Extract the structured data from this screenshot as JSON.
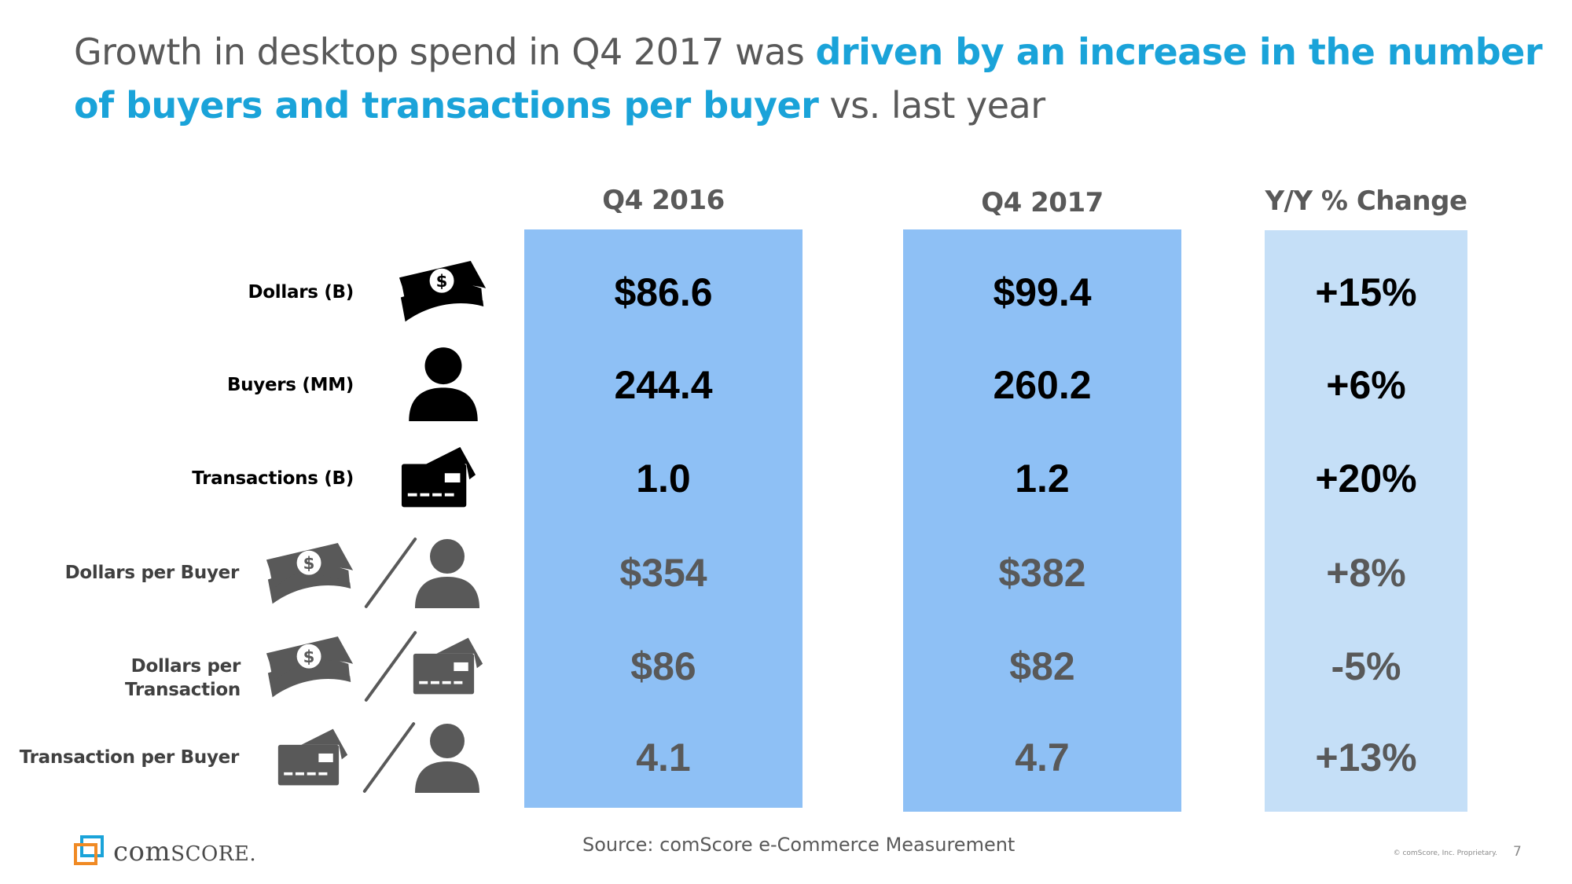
{
  "title": {
    "part1": "Growth in desktop spend in Q4 2017 was ",
    "highlight": "driven by an increase in the number of buyers and transactions per buyer",
    "part2": " vs. last year"
  },
  "colors": {
    "col_q4_2016": "#8ec0f5",
    "col_q4_2017": "#8ec0f5",
    "col_yoy": "#c5dff7",
    "title_highlight": "#1aa3d9",
    "icon_dark": "#000000",
    "icon_gray": "#595959"
  },
  "chart_data": {
    "type": "table",
    "columns": [
      "Q4 2016",
      "Q4 2017",
      "Y/Y % Change"
    ],
    "rows": [
      {
        "label": "Dollars (B)",
        "icons": [
          "money-icon"
        ],
        "values": [
          "$86.6",
          "$99.4",
          "+15%"
        ],
        "style": "primary"
      },
      {
        "label": "Buyers (MM)",
        "icons": [
          "person-icon"
        ],
        "values": [
          "244.4",
          "260.2",
          "+6%"
        ],
        "style": "primary"
      },
      {
        "label": "Transactions (B)",
        "icons": [
          "credit-card-icon"
        ],
        "values": [
          "1.0",
          "1.2",
          "+20%"
        ],
        "style": "primary"
      },
      {
        "label": "Dollars per Buyer",
        "icons": [
          "money-icon",
          "person-icon"
        ],
        "values": [
          "$354",
          "$382",
          "+8%"
        ],
        "style": "derived"
      },
      {
        "label": "Dollars per Transaction",
        "icons": [
          "money-icon",
          "credit-card-icon"
        ],
        "values": [
          "$86",
          "$82",
          "-5%"
        ],
        "style": "derived"
      },
      {
        "label": "Transaction per Buyer",
        "icons": [
          "credit-card-icon",
          "person-icon"
        ],
        "values": [
          "4.1",
          "4.7",
          "+13%"
        ],
        "style": "derived"
      }
    ]
  },
  "footer": {
    "source": "Source: comScore e-Commerce Measurement",
    "copyright": "© comScore, Inc. Proprietary.",
    "page_number": "7",
    "logo_text_big": "com",
    "logo_text_small": "SCORE",
    "logo_dot": "."
  }
}
